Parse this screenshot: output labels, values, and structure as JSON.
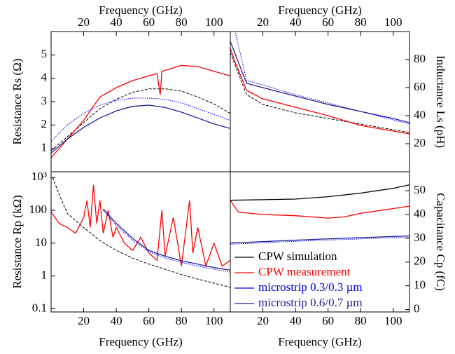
{
  "chart_data": [
    {
      "type": "line",
      "xlabel": "Frequency (GHz)",
      "xaxis": "top",
      "ylabel": "Resistance Rs (Ω)",
      "yaxis": "left",
      "xlim": [
        0,
        110
      ],
      "xticks": [
        20,
        40,
        60,
        80,
        100
      ],
      "ylim": [
        0,
        6
      ],
      "yticks": [
        1,
        2,
        3,
        4,
        5
      ],
      "series": [
        {
          "color": "#000000",
          "style": "dashed",
          "x": [
            0,
            10,
            20,
            30,
            40,
            50,
            60,
            70,
            80,
            90,
            100,
            110
          ],
          "values": [
            0.9,
            1.5,
            2.1,
            2.7,
            3.1,
            3.4,
            3.55,
            3.55,
            3.45,
            3.2,
            2.9,
            2.5
          ]
        },
        {
          "color": "#ff0000",
          "style": "solid",
          "x": [
            0,
            10,
            20,
            30,
            40,
            50,
            60,
            65,
            67,
            68,
            80,
            90,
            100,
            110
          ],
          "values": [
            0.6,
            1.4,
            2.2,
            3.2,
            3.6,
            3.9,
            4.1,
            4.2,
            3.3,
            4.3,
            4.55,
            4.5,
            4.3,
            4.1
          ]
        },
        {
          "color": "#0000ee",
          "style": "dotted",
          "x": [
            0,
            10,
            20,
            30,
            40,
            50,
            60,
            70,
            80,
            90,
            100,
            110
          ],
          "values": [
            1.3,
            2.0,
            2.5,
            2.85,
            3.05,
            3.15,
            3.15,
            3.1,
            2.95,
            2.7,
            2.45,
            2.2
          ]
        },
        {
          "color": "#1f1f99",
          "style": "solid",
          "x": [
            0,
            10,
            20,
            30,
            40,
            50,
            60,
            70,
            80,
            90,
            100,
            110
          ],
          "values": [
            0.8,
            1.4,
            1.9,
            2.3,
            2.6,
            2.8,
            2.85,
            2.75,
            2.55,
            2.3,
            2.05,
            1.85
          ]
        }
      ]
    },
    {
      "type": "line",
      "xlabel": "Frequency (GHz)",
      "xaxis": "top",
      "ylabel": "Inductance Ls (pH)",
      "yaxis": "right",
      "xlim": [
        0,
        110
      ],
      "xticks": [
        20,
        40,
        60,
        80,
        100
      ],
      "ylim": [
        0,
        100
      ],
      "yticks": [
        20,
        40,
        60,
        80
      ],
      "series": [
        {
          "color": "#000000",
          "style": "dashed",
          "x": [
            0,
            10,
            20,
            40,
            60,
            80,
            100,
            110
          ],
          "values": [
            85,
            55,
            48,
            42,
            38,
            34,
            30,
            28
          ]
        },
        {
          "color": "#ff0000",
          "style": "solid",
          "x": [
            0,
            3,
            10,
            20,
            40,
            60,
            80,
            100,
            110
          ],
          "values": [
            88,
            78,
            58,
            52,
            46,
            40,
            33,
            29,
            27
          ]
        },
        {
          "color": "#0000ee",
          "style": "dotted",
          "x": [
            0,
            10,
            20,
            40,
            60,
            80,
            100,
            110
          ],
          "values": [
            115,
            65,
            62,
            55,
            49,
            43,
            37,
            34
          ]
        },
        {
          "color": "#1f1f99",
          "style": "solid",
          "x": [
            0,
            10,
            20,
            40,
            60,
            80,
            100,
            110
          ],
          "values": [
            93,
            63,
            60,
            54,
            48,
            43,
            38,
            35
          ]
        }
      ]
    },
    {
      "type": "line",
      "xlabel": "Frequency (GHz)",
      "xaxis": "bottom",
      "ylabel": "Resistance Rp (kΩ)",
      "yaxis": "left",
      "ylog": true,
      "xlim": [
        0,
        110
      ],
      "xticks": [
        20,
        40,
        60,
        80,
        100
      ],
      "ylim": [
        0.08,
        1500
      ],
      "yticks": [
        0.1,
        1,
        10,
        100,
        {
          "value": 1000,
          "label": "10³"
        }
      ],
      "series": [
        {
          "color": "#000000",
          "style": "dashed",
          "x": [
            1,
            5,
            10,
            20,
            30,
            40,
            50,
            60,
            70,
            80,
            90,
            100,
            110
          ],
          "values": [
            1000,
            300,
            80,
            30,
            12,
            6,
            3.5,
            2.3,
            1.6,
            1.1,
            0.8,
            0.6,
            0.45
          ]
        },
        {
          "color": "#ff0000",
          "style": "solid",
          "x": [
            0,
            5,
            10,
            15,
            20,
            22,
            24,
            26,
            28,
            30,
            32,
            35,
            38,
            40,
            45,
            50,
            55,
            60,
            65,
            68,
            70,
            75,
            78,
            80,
            85,
            87,
            90,
            95,
            100,
            105,
            110
          ],
          "values": [
            90,
            40,
            30,
            20,
            60,
            200,
            30,
            600,
            40,
            200,
            20,
            100,
            15,
            30,
            10,
            6,
            15,
            5,
            3,
            100,
            4,
            60,
            8,
            2,
            200,
            5,
            30,
            2,
            10,
            2,
            3
          ]
        },
        {
          "color": "#0000ee",
          "style": "dotted",
          "x": [
            32,
            40,
            50,
            60,
            70,
            80,
            90,
            100,
            110
          ],
          "values": [
            100,
            35,
            12,
            5.5,
            3.5,
            2.6,
            2.0,
            1.6,
            1.3
          ]
        },
        {
          "color": "#1f1f99",
          "style": "solid",
          "x": [
            32,
            40,
            50,
            60,
            70,
            80,
            90,
            100,
            110
          ],
          "values": [
            110,
            40,
            14,
            6,
            4,
            2.9,
            2.3,
            1.8,
            1.5
          ]
        }
      ]
    },
    {
      "type": "line",
      "xlabel": "Frequency (GHz)",
      "xaxis": "bottom",
      "ylabel": "Capacitance Cp (fC)",
      "yaxis": "right",
      "legend": "lower left",
      "xlim": [
        0,
        110
      ],
      "xticks": [
        20,
        40,
        60,
        80,
        100
      ],
      "ylim": [
        -1,
        58
      ],
      "yticks": [
        0,
        10,
        20,
        30,
        40,
        50
      ],
      "series": [
        {
          "name": "CPW simulation",
          "color": "#000000",
          "style": "solid",
          "x": [
            0,
            40,
            60,
            80,
            100,
            110
          ],
          "values": [
            46,
            46.5,
            47.5,
            49,
            51,
            52.5
          ]
        },
        {
          "name": "CPW measurement",
          "color": "#ff0000",
          "style": "solid",
          "x": [
            0,
            5,
            20,
            40,
            60,
            70,
            80,
            100,
            110
          ],
          "values": [
            46,
            41,
            40,
            39.5,
            38.5,
            39,
            40.5,
            42.5,
            43.5
          ]
        },
        {
          "name": "microstrip 0.3/0.3 µm",
          "color": "#0000ee",
          "style": "dotted",
          "x": [
            0,
            50,
            110
          ],
          "values": [
            27.5,
            29,
            30.5
          ]
        },
        {
          "name": "microstrip 0.6/0.7 µm",
          "color": "#1f1f99",
          "style": "solid",
          "x": [
            0,
            50,
            110
          ],
          "values": [
            28,
            29.5,
            31
          ]
        }
      ]
    }
  ]
}
